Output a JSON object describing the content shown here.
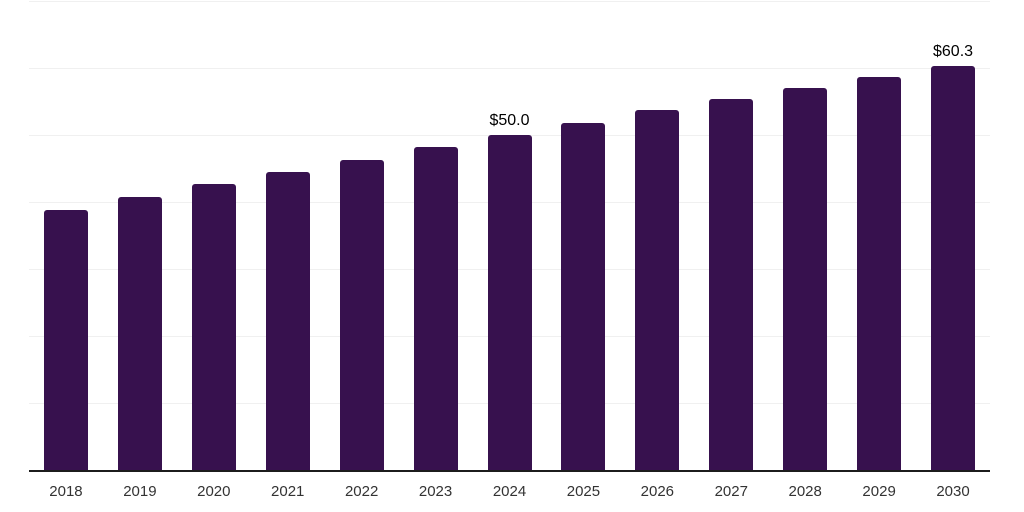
{
  "chart_data": {
    "type": "bar",
    "title": "",
    "xlabel": "",
    "ylabel": "",
    "categories": [
      "2018",
      "2019",
      "2020",
      "2021",
      "2022",
      "2023",
      "2024",
      "2025",
      "2026",
      "2027",
      "2028",
      "2029",
      "2030"
    ],
    "values": [
      38.8,
      40.7,
      42.7,
      44.5,
      46.3,
      48.2,
      50.0,
      51.8,
      53.7,
      55.4,
      57.0,
      58.7,
      60.3
    ],
    "data_labels": {
      "2024": "$50.0",
      "2030": "$60.3"
    },
    "ylim": [
      0,
      70
    ],
    "gridline_step": 10,
    "grid": "horizontal",
    "legend": "none",
    "colors": {
      "bar": "#37114e",
      "gridline": "#f0f0f0",
      "axis_line": "#1c1c1c",
      "data_label": "#000000",
      "tick_label": "#333333",
      "background": "#ffffff"
    }
  }
}
